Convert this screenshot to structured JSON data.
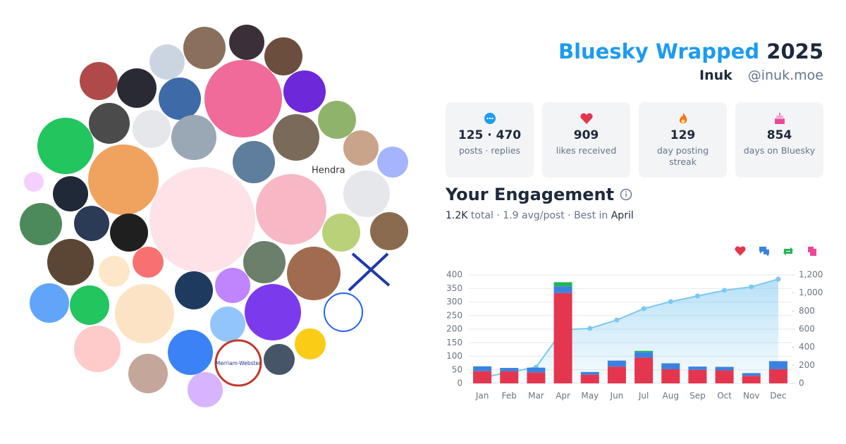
{
  "header": {
    "title": "Bluesky Wrapped",
    "year": "2025",
    "display_name": "Inuk",
    "handle": "@inuk.moe"
  },
  "stats": [
    {
      "value": "125 · 470",
      "label": "posts · replies"
    },
    {
      "value": "909",
      "label": "likes received"
    },
    {
      "value": "129",
      "label": "day posting streak"
    },
    {
      "value": "854",
      "label": "days on Bluesky"
    }
  ],
  "avatar_labels": [
    "Hendra",
    "Merriam-Webster"
  ],
  "engagement": {
    "title": "Your Engagement",
    "total": "1.2K",
    "total_label": "total",
    "separator": "·",
    "avg": "1.9",
    "avg_label": "avg/post",
    "best_label": "Best in",
    "best": "April"
  },
  "chart_data": {
    "type": "bar",
    "stacked": true,
    "categories": [
      "Jan",
      "Feb",
      "Mar",
      "Apr",
      "May",
      "Jun",
      "Jul",
      "Aug",
      "Sep",
      "Oct",
      "Nov",
      "Dec"
    ],
    "series": [
      {
        "color": "#e5364f",
        "values": [
          45,
          45,
          40,
          333,
          32,
          62,
          95,
          52,
          50,
          48,
          28,
          52
        ]
      },
      {
        "color": "#3b82e0",
        "values": [
          18,
          12,
          18,
          25,
          10,
          22,
          20,
          22,
          12,
          13,
          10,
          30
        ]
      },
      {
        "color": "#22b35a",
        "values": [
          0,
          0,
          0,
          15,
          0,
          0,
          5,
          0,
          0,
          0,
          0,
          0
        ]
      },
      {
        "color": "#ec4899",
        "values": [
          0,
          0,
          0,
          0,
          0,
          0,
          0,
          0,
          0,
          0,
          0,
          0
        ]
      },
      {
        "type": "line",
        "axis": "y2",
        "color": "#7cc8ef",
        "values": [
          65,
          122,
          180,
          592,
          608,
          701,
          826,
          904,
          966,
          1029,
          1068,
          1153
        ]
      }
    ],
    "ylim": [
      0,
      400
    ],
    "yticks": [
      0,
      50,
      100,
      150,
      200,
      250,
      300,
      350,
      400
    ],
    "y2lim": [
      0,
      1200
    ],
    "y2ticks": [
      0,
      200,
      400,
      600,
      800,
      {
        "value": 1000,
        "label": "1,000"
      },
      {
        "value": 1200,
        "label": "1,200"
      }
    ],
    "grid": true,
    "legend": "top-right"
  }
}
